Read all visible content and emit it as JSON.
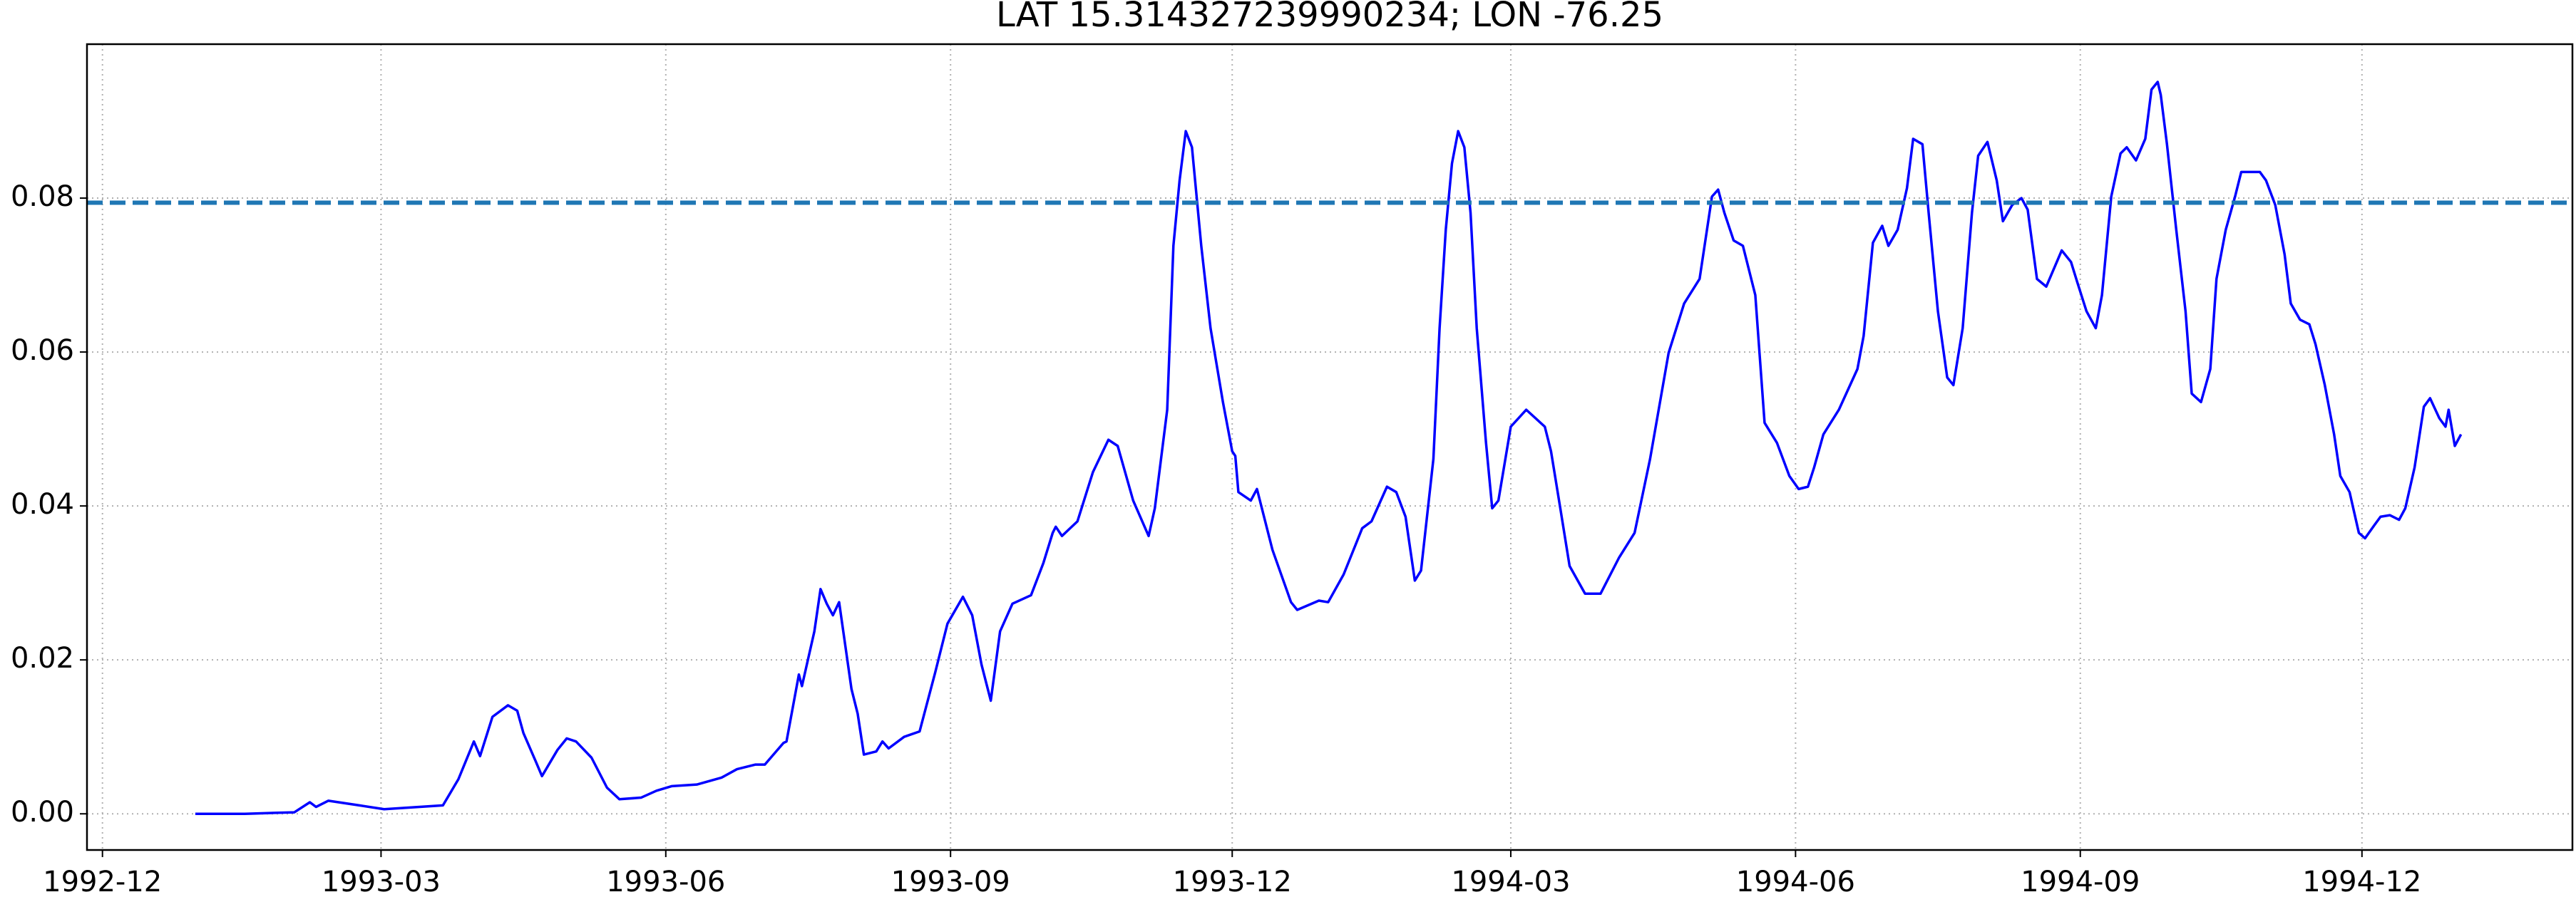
{
  "chart_data": {
    "type": "line",
    "title": "LAT 15.314327239990234; LON -76.25",
    "color": "#0000ff",
    "grid": true,
    "x": [
      8400,
      8416,
      8432,
      8437,
      8439,
      8443,
      8453,
      8461,
      8480,
      8485,
      8490,
      8492,
      8496,
      8501,
      8504,
      8506,
      8510,
      8512,
      8517,
      8520,
      8523,
      8528,
      8533,
      8537,
      8544,
      8549,
      8554,
      8562,
      8570,
      8575,
      8581,
      8584,
      8590,
      8591,
      8595,
      8596,
      8600,
      8602,
      8604,
      8606,
      8608,
      8612,
      8614,
      8616,
      8620,
      8622,
      8624,
      8629,
      8634,
      8639,
      8643,
      8648,
      8651,
      8654,
      8657,
      8660,
      8664,
      8670,
      8674,
      8677,
      8678,
      8680,
      8685,
      8690,
      8695,
      8698,
      8703,
      8708,
      8710,
      8714,
      8716,
      8718,
      8720,
      8722,
      8725,
      8728,
      8732,
      8735,
      8736,
      8737,
      8741,
      8743,
      8748,
      8754,
      8756,
      8763,
      8766,
      8771,
      8777,
      8780,
      8785,
      8788,
      8791,
      8794,
      8796,
      8800,
      8802,
      8804,
      8806,
      8808,
      8810,
      8812,
      8814,
      8817,
      8819,
      8821,
      8825,
      8830,
      8836,
      8838,
      8841,
      8844,
      8849,
      8854,
      8860,
      8865,
      8870,
      8876,
      8881,
      8886,
      8890,
      8892,
      8894,
      8897,
      8900,
      8904,
      8907,
      8911,
      8915,
      8918,
      8921,
      8923,
      8926,
      8931,
      8937,
      8939,
      8942,
      8945,
      8947,
      8950,
      8953,
      8955,
      8958,
      8960,
      8963,
      8966,
      8968,
      8971,
      8974,
      8976,
      8979,
      8982,
      8984,
      8987,
      8990,
      8992,
      8995,
      8998,
      9003,
      9006,
      9008,
      9011,
      9014,
      9016,
      9019,
      9022,
      9024,
      9027,
      9030,
      9032,
      9034,
      9035,
      9037,
      9040,
      9043,
      9045,
      9048,
      9051,
      9053,
      9056,
      9059,
      9061,
      9067,
      9069,
      9072,
      9075,
      9077,
      9080,
      9083,
      9085,
      9088,
      9091,
      9093,
      9096,
      9099,
      9101,
      9104,
      9106,
      9109,
      9112,
      9114,
      9117,
      9120,
      9122,
      9125,
      9127,
      9128,
      9130,
      9132
    ],
    "values": [
      0,
      0,
      0.0002,
      0.0015,
      0.0009,
      0.0017,
      0.0011,
      0.0006,
      0.0011,
      0.0045,
      0.0094,
      0.0075,
      0.0126,
      0.0141,
      0.0134,
      0.0105,
      0.0068,
      0.0049,
      0.0083,
      0.0098,
      0.0094,
      0.0073,
      0.0034,
      0.0019,
      0.0021,
      0.003,
      0.0036,
      0.0038,
      0.0047,
      0.0058,
      0.0064,
      0.0064,
      0.0092,
      0.0094,
      0.0181,
      0.0166,
      0.0237,
      0.0292,
      0.0273,
      0.0258,
      0.0275,
      0.0162,
      0.013,
      0.0077,
      0.0081,
      0.0094,
      0.0085,
      0.01,
      0.0107,
      0.0183,
      0.0247,
      0.0282,
      0.0258,
      0.0194,
      0.0147,
      0.0237,
      0.0273,
      0.0284,
      0.0326,
      0.0365,
      0.0373,
      0.0361,
      0.038,
      0.0444,
      0.0486,
      0.0478,
      0.0407,
      0.0361,
      0.0397,
      0.0525,
      0.0738,
      0.0823,
      0.0887,
      0.0866,
      0.0738,
      0.0631,
      0.0535,
      0.0471,
      0.0465,
      0.0418,
      0.0407,
      0.0422,
      0.0343,
      0.0275,
      0.0265,
      0.0277,
      0.0275,
      0.0311,
      0.0371,
      0.038,
      0.0425,
      0.0418,
      0.0386,
      0.0303,
      0.0316,
      0.0461,
      0.0631,
      0.0759,
      0.0845,
      0.0887,
      0.0866,
      0.0781,
      0.0631,
      0.0482,
      0.0397,
      0.0407,
      0.0503,
      0.0525,
      0.0503,
      0.0471,
      0.0397,
      0.0322,
      0.0286,
      0.0286,
      0.0333,
      0.0365,
      0.0461,
      0.0599,
      0.0663,
      0.0695,
      0.0802,
      0.0811,
      0.0781,
      0.0745,
      0.0738,
      0.0674,
      0.0508,
      0.0482,
      0.0439,
      0.0422,
      0.0425,
      0.045,
      0.0493,
      0.0525,
      0.0578,
      0.0621,
      0.0742,
      0.0764,
      0.0738,
      0.0759,
      0.0813,
      0.0877,
      0.087,
      0.0781,
      0.0653,
      0.0567,
      0.0557,
      0.0631,
      0.0781,
      0.0855,
      0.0873,
      0.0823,
      0.077,
      0.0791,
      0.08,
      0.0785,
      0.0695,
      0.0685,
      0.0732,
      0.0717,
      0.0691,
      0.0653,
      0.0631,
      0.0674,
      0.0802,
      0.0858,
      0.0866,
      0.0849,
      0.0877,
      0.0941,
      0.0951,
      0.0934,
      0.087,
      0.0759,
      0.0653,
      0.0546,
      0.0535,
      0.0578,
      0.0695,
      0.0759,
      0.0802,
      0.0834,
      0.0834,
      0.0823,
      0.0791,
      0.0727,
      0.0663,
      0.0642,
      0.0636,
      0.061,
      0.0557,
      0.0493,
      0.0439,
      0.0418,
      0.0365,
      0.0358,
      0.0375,
      0.0386,
      0.0388,
      0.0382,
      0.0397,
      0.045,
      0.0529,
      0.054,
      0.0514,
      0.0503,
      0.0525,
      0.0478,
      0.0493
    ],
    "hline": {
      "value": 0.0794,
      "color": "#1f77b4",
      "style": "dashed"
    },
    "xlim": [
      8365,
      9168
    ],
    "ylim": [
      -0.0047,
      0.1
    ],
    "xticks": [
      {
        "value": 8370,
        "label": "1992-12"
      },
      {
        "value": 8460,
        "label": "1993-03"
      },
      {
        "value": 8552,
        "label": "1993-06"
      },
      {
        "value": 8644,
        "label": "1993-09"
      },
      {
        "value": 8735,
        "label": "1993-12"
      },
      {
        "value": 8825,
        "label": "1994-03"
      },
      {
        "value": 8917,
        "label": "1994-06"
      },
      {
        "value": 9009,
        "label": "1994-09"
      },
      {
        "value": 9100,
        "label": "1994-12"
      }
    ],
    "yticks": [
      {
        "value": 0,
        "label": "0.00"
      },
      0.02,
      0.04,
      0.06,
      0.08
    ]
  }
}
